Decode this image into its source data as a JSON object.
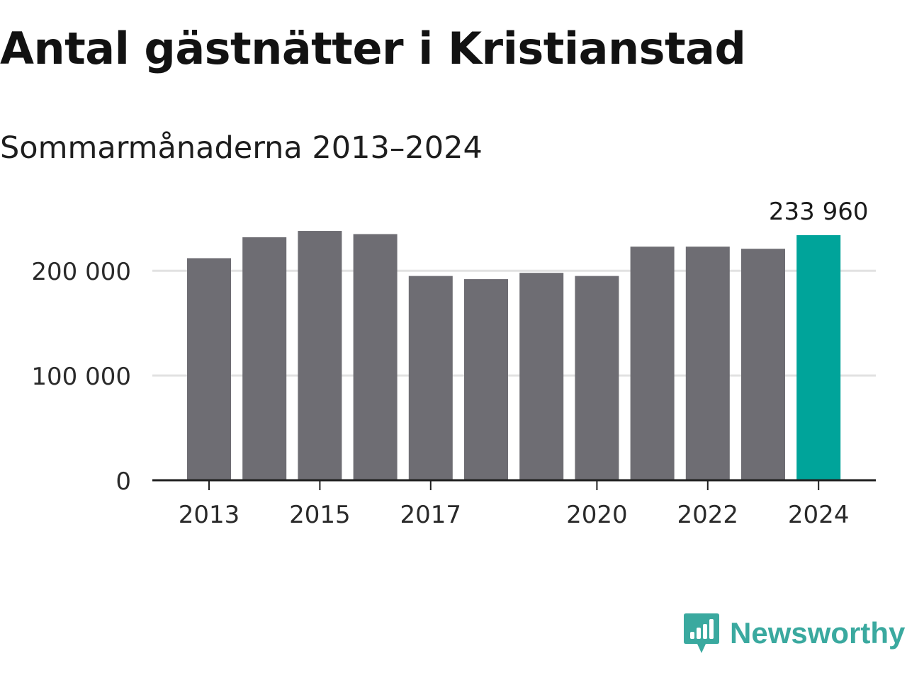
{
  "title": "Antal gästnätter i Kristianstad",
  "subtitle": "Sommarmånaderna 2013–2024",
  "brand": {
    "name": "Newsworthy",
    "color": "#3aa99f",
    "icon": "newsworthy-logo-icon"
  },
  "chart_data": {
    "type": "bar",
    "categories": [
      "2013",
      "2014",
      "2015",
      "2016",
      "2017",
      "2018",
      "2019",
      "2020",
      "2021",
      "2022",
      "2023",
      "2024"
    ],
    "x_tick_labels": [
      "2013",
      "",
      "2015",
      "",
      "2017",
      "",
      "",
      "2020",
      "",
      "2022",
      "",
      "2024"
    ],
    "values": [
      212000,
      232000,
      238000,
      235000,
      195000,
      192000,
      198000,
      195000,
      223000,
      223000,
      221000,
      233960
    ],
    "highlight_index": 11,
    "highlight_label": "233 960",
    "y_ticks": [
      0,
      100000,
      200000
    ],
    "y_tick_labels": [
      "0",
      "100 000",
      "200 000"
    ],
    "ylim": [
      0,
      240000
    ],
    "grid": true,
    "colors": {
      "bar": "#6e6d73",
      "highlight": "#00a49a",
      "grid": "#e2e2e2",
      "axis": "#1f1f1f"
    }
  }
}
